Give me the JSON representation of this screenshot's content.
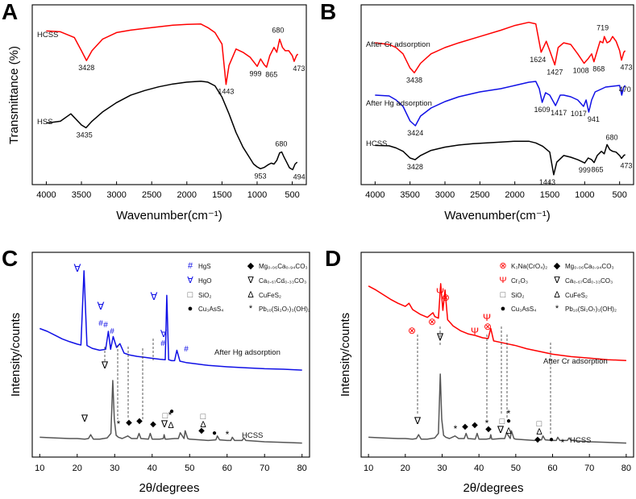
{
  "colors": {
    "red": "#ff0000",
    "blue": "#1010e6",
    "black": "#000000",
    "gray": "#555555"
  },
  "panels": {
    "A": {
      "letter": "A",
      "xlabel": "Wavenumber(cm⁻¹)",
      "ylabel": "Transmittance (%)"
    },
    "B": {
      "letter": "B",
      "xlabel": "Wavenumber(cm⁻¹)"
    },
    "C": {
      "letter": "C",
      "xlabel": "2θ/degrees",
      "ylabel": "Intensity/counts"
    },
    "D": {
      "letter": "D",
      "xlabel": "2θ/degrees",
      "ylabel": "Intensity/counts"
    }
  },
  "chart_data": [
    {
      "panel": "A",
      "type": "line",
      "xlabel": "Wavenumber(cm⁻¹)",
      "ylabel": "Transmittance (%)",
      "xlim": [
        4200,
        300
      ],
      "xticks": [
        4000,
        3500,
        3000,
        2500,
        2000,
        1500,
        1000,
        500
      ],
      "series": [
        {
          "name": "HCSS",
          "color": "#ff0000",
          "x": [
            4000,
            3800,
            3600,
            3500,
            3428,
            3350,
            3200,
            3000,
            2800,
            2600,
            2400,
            2200,
            2000,
            1800,
            1700,
            1600,
            1500,
            1443,
            1400,
            1300,
            1200,
            1100,
            999,
            950,
            900,
            865,
            820,
            760,
            720,
            680,
            640,
            600,
            550,
            500,
            473,
            440,
            420
          ],
          "y": [
            3.0,
            2.95,
            2.6,
            1.8,
            1.2,
            1.8,
            2.5,
            2.9,
            3.05,
            3.15,
            3.25,
            3.35,
            3.4,
            3.42,
            3.2,
            2.9,
            2.2,
            -0.25,
            0.9,
            1.9,
            1.7,
            1.4,
            0.85,
            1.3,
            0.95,
            0.8,
            1.5,
            2.0,
            1.7,
            2.5,
            2.0,
            1.8,
            1.8,
            1.5,
            1.15,
            1.5,
            1.6
          ],
          "annotations": [
            {
              "label": "3428",
              "x": 3428
            },
            {
              "label": "1443",
              "x": 1443
            },
            {
              "label": "999",
              "x": 999
            },
            {
              "label": "865",
              "x": 865
            },
            {
              "label": "680",
              "x": 680
            },
            {
              "label": "473",
              "x": 473
            }
          ]
        },
        {
          "name": "HSS",
          "color": "#000000",
          "x": [
            4000,
            3800,
            3650,
            3600,
            3500,
            3435,
            3350,
            3200,
            3000,
            2800,
            2600,
            2400,
            2200,
            2000,
            1800,
            1700,
            1600,
            1500,
            1400,
            1300,
            1200,
            1100,
            1050,
            1000,
            953,
            900,
            850,
            800,
            760,
            720,
            680,
            650,
            620,
            580,
            540,
            494,
            460,
            430
          ],
          "y": [
            -2.5,
            -2.4,
            -2.0,
            -2.2,
            -2.6,
            -2.75,
            -2.4,
            -1.9,
            -1.4,
            -1.0,
            -0.75,
            -0.55,
            -0.4,
            -0.3,
            -0.25,
            -0.3,
            -0.5,
            -1.1,
            -2.0,
            -3.0,
            -3.8,
            -4.4,
            -4.7,
            -4.85,
            -4.95,
            -4.88,
            -4.75,
            -4.65,
            -4.7,
            -4.5,
            -4.1,
            -4.05,
            -4.3,
            -4.6,
            -4.9,
            -5.0,
            -4.7,
            -4.6
          ],
          "annotations": [
            {
              "label": "3435",
              "x": 3435
            },
            {
              "label": "680",
              "x": 680
            },
            {
              "label": "953",
              "x": 953
            },
            {
              "label": "494",
              "x": 494
            }
          ]
        }
      ]
    },
    {
      "panel": "B",
      "type": "line",
      "xlabel": "Wavenumber(cm⁻¹)",
      "xlim": [
        4200,
        300
      ],
      "xticks": [
        4000,
        3500,
        3000,
        2500,
        2000,
        1500,
        1000,
        500
      ],
      "series": [
        {
          "name": "After Cr adsorption",
          "color": "#ff0000",
          "x": [
            4000,
            3800,
            3700,
            3600,
            3500,
            3438,
            3350,
            3200,
            3000,
            2800,
            2500,
            2200,
            2000,
            1800,
            1700,
            1624,
            1550,
            1500,
            1427,
            1380,
            1300,
            1200,
            1100,
            1008,
            950,
            900,
            868,
            820,
            780,
            740,
            719,
            680,
            640,
            600,
            550,
            500,
            473,
            440,
            420
          ],
          "y": [
            9.5,
            9.4,
            9.2,
            8.8,
            7.9,
            7.6,
            8.2,
            8.8,
            9.2,
            9.5,
            9.9,
            10.3,
            10.6,
            10.8,
            10.7,
            8.9,
            9.6,
            9.0,
            8.1,
            9.2,
            9.5,
            9.4,
            8.8,
            8.2,
            8.5,
            8.8,
            8.3,
            9.0,
            9.6,
            9.5,
            9.9,
            9.5,
            9.6,
            9.9,
            9.6,
            9.0,
            8.4,
            8.9,
            9.0
          ],
          "annotations": [
            {
              "label": "3438",
              "x": 3438
            },
            {
              "label": "1624",
              "x": 1624
            },
            {
              "label": "1427",
              "x": 1427
            },
            {
              "label": "1008",
              "x": 1008
            },
            {
              "label": "868",
              "x": 868
            },
            {
              "label": "719",
              "x": 719
            },
            {
              "label": "473",
              "x": 473
            }
          ]
        },
        {
          "name": "After Hg adsorption",
          "color": "#1010e6",
          "x": [
            4000,
            3800,
            3700,
            3600,
            3500,
            3424,
            3350,
            3200,
            3000,
            2800,
            2500,
            2200,
            2000,
            1800,
            1700,
            1650,
            1609,
            1560,
            1500,
            1417,
            1350,
            1300,
            1200,
            1100,
            1017,
            980,
            941,
            900,
            850,
            800,
            700,
            600,
            500,
            470,
            440,
            420
          ],
          "y": [
            5.6,
            5.55,
            5.3,
            4.9,
            4.0,
            3.7,
            4.3,
            4.8,
            5.2,
            5.5,
            5.8,
            6.0,
            6.2,
            6.4,
            6.45,
            6.0,
            5.15,
            5.75,
            5.6,
            4.95,
            5.6,
            5.6,
            5.5,
            5.3,
            4.9,
            5.3,
            4.55,
            5.3,
            5.8,
            5.9,
            6.1,
            6.15,
            6.2,
            5.6,
            6.1,
            6.2
          ],
          "annotations": [
            {
              "label": "3424",
              "x": 3424
            },
            {
              "label": "1609",
              "x": 1609
            },
            {
              "label": "1417",
              "x": 1417
            },
            {
              "label": "1017",
              "x": 1017
            },
            {
              "label": "941",
              "x": 941
            },
            {
              "label": "470",
              "x": 470
            }
          ]
        },
        {
          "name": "HCSS",
          "color": "#000000",
          "x": [
            4000,
            3800,
            3700,
            3600,
            3500,
            3428,
            3350,
            3200,
            3000,
            2800,
            2600,
            2400,
            2200,
            2000,
            1800,
            1700,
            1600,
            1500,
            1443,
            1400,
            1300,
            1200,
            1100,
            999,
            950,
            900,
            865,
            820,
            760,
            720,
            680,
            640,
            600,
            550,
            500,
            473,
            440,
            420
          ],
          "y": [
            2.0,
            1.95,
            1.7,
            1.3,
            0.5,
            0.3,
            0.8,
            1.4,
            1.8,
            2.05,
            2.2,
            2.3,
            2.4,
            2.5,
            2.5,
            2.3,
            1.9,
            1.2,
            -1.5,
            0.0,
            0.8,
            0.6,
            0.3,
            -0.1,
            0.5,
            0.3,
            -0.05,
            0.8,
            1.3,
            1.0,
            2.1,
            1.5,
            1.3,
            1.2,
            0.8,
            0.45,
            0.8,
            0.9
          ],
          "annotations": [
            {
              "label": "3428",
              "x": 3428
            },
            {
              "label": "1443",
              "x": 1443
            },
            {
              "label": "999",
              "x": 999
            },
            {
              "label": "865",
              "x": 865
            },
            {
              "label": "680",
              "x": 680
            },
            {
              "label": "473",
              "x": 473
            }
          ]
        }
      ]
    },
    {
      "panel": "C",
      "type": "line",
      "xlabel": "2θ/degrees",
      "ylabel": "Intensity/counts",
      "xlim": [
        8,
        82
      ],
      "xticks": [
        10,
        20,
        30,
        40,
        50,
        60,
        70,
        80
      ],
      "series": [
        {
          "name": "After Hg adsorption",
          "color": "#1010e6",
          "x": [
            10,
            12,
            14,
            16,
            18,
            20,
            21,
            21.8,
            22.6,
            24,
            26,
            27.6,
            28.3,
            28.9,
            29.6,
            30.5,
            31.4,
            32.5,
            34,
            36,
            38,
            40,
            42,
            43.5,
            43.9,
            44.4,
            45.2,
            46,
            46.6,
            47.4,
            49,
            52,
            55,
            60,
            65,
            70,
            75,
            80
          ],
          "y": [
            128,
            122,
            114,
            106,
            100,
            95,
            93,
            250,
            92,
            86,
            82,
            84,
            122,
            84,
            111,
            88,
            96,
            76,
            72,
            69,
            67,
            65,
            63,
            62,
            198,
            62,
            60,
            60,
            82,
            59,
            56,
            53,
            50,
            47,
            45,
            43,
            42,
            40
          ]
        },
        {
          "name": "HCSS",
          "color": "#555555",
          "x": [
            10,
            14,
            18,
            20,
            22,
            23,
            23.6,
            24.3,
            26,
            28,
            29,
            29.5,
            29.9,
            30.4,
            31,
            32,
            33.5,
            34.5,
            36,
            36.5,
            37,
            39,
            39.5,
            40,
            42,
            43,
            43.2,
            43.5,
            44,
            46,
            47,
            47.5,
            48.5,
            48.8,
            49.5,
            50,
            55,
            57,
            57.4,
            58,
            60,
            61,
            61.4,
            62,
            64,
            64.5,
            65,
            70,
            75,
            80
          ],
          "y": [
            12,
            11,
            10,
            10,
            9,
            10,
            16,
            9,
            9,
            11,
            18,
            100,
            40,
            15,
            12,
            10,
            14,
            10,
            10,
            18,
            10,
            9,
            18,
            9,
            9,
            10,
            16,
            9,
            9,
            10,
            10,
            19,
            10,
            22,
            10,
            9,
            7,
            8,
            14,
            8,
            7,
            7,
            12,
            7,
            7,
            11,
            7,
            5,
            4,
            3
          ]
        }
      ],
      "legend": [
        {
          "symbol": "#",
          "label": "HgS",
          "color": "#1010e6"
        },
        {
          "symbol": "∀",
          "label": "HgO",
          "color": "#1010e6"
        },
        {
          "symbol": "□",
          "label": "SiO₂",
          "color": "#555555"
        },
        {
          "symbol": "●",
          "label": "Cu₃AsS₄",
          "color": "#000000"
        },
        {
          "symbol": "◆",
          "label": "Mg₀.₀₆Ca₀.₉₄CO₃",
          "color": "#000000"
        },
        {
          "symbol": "∇",
          "label": "Ca₀.₆₇Cd₀.₃₃CO₃",
          "color": "#000000"
        },
        {
          "symbol": "Δ",
          "label": "CuFeS₂",
          "color": "#000000"
        },
        {
          "symbol": "*",
          "label": "Pb₁₀(Si₂O₇)₃(OH)₂",
          "color": "#000000"
        }
      ]
    },
    {
      "panel": "D",
      "type": "line",
      "xlabel": "2θ/degrees",
      "ylabel": "Intensity/counts",
      "xlim": [
        8,
        82
      ],
      "xticks": [
        10,
        20,
        30,
        40,
        50,
        60,
        70,
        80
      ],
      "series": [
        {
          "name": "After Cr adsorption",
          "color": "#ff0000",
          "x": [
            10,
            12,
            14,
            16,
            18,
            20,
            21,
            22,
            24,
            26,
            27.5,
            28,
            29,
            29.6,
            30.2,
            30.8,
            31.5,
            33,
            35,
            37,
            39,
            41,
            42.5,
            43.2,
            44,
            46,
            48,
            50,
            53,
            56,
            60,
            65,
            70,
            75,
            80
          ],
          "y": [
            143,
            138,
            132,
            126,
            121,
            117,
            121,
            113,
            107,
            103,
            109,
            104,
            102,
            146,
            112,
            138,
            100,
            92,
            86,
            82,
            80,
            77,
            76,
            89,
            73,
            71,
            69,
            67,
            63,
            60,
            56,
            53,
            51,
            49,
            48
          ]
        },
        {
          "name": "HCSS",
          "color": "#555555",
          "x": [
            10,
            14,
            18,
            20,
            22,
            23,
            23.6,
            24.3,
            26,
            28,
            29,
            29.5,
            29.9,
            30.4,
            31,
            32,
            33.5,
            34.5,
            36,
            36.5,
            37,
            39,
            39.5,
            40,
            42,
            43,
            43.2,
            43.5,
            44,
            46,
            47,
            47.5,
            48.5,
            48.8,
            49.5,
            50,
            55,
            57,
            57.4,
            58,
            60,
            61,
            61.4,
            62,
            64,
            64.5,
            65,
            70,
            75,
            80
          ],
          "y": [
            12,
            11,
            10,
            10,
            9,
            10,
            16,
            9,
            9,
            11,
            18,
            110,
            40,
            15,
            12,
            10,
            14,
            10,
            10,
            18,
            10,
            9,
            18,
            9,
            9,
            10,
            16,
            9,
            9,
            10,
            10,
            19,
            10,
            22,
            10,
            9,
            7,
            8,
            14,
            8,
            7,
            7,
            12,
            7,
            7,
            11,
            7,
            5,
            4,
            3
          ]
        }
      ],
      "legend": [
        {
          "symbol": "⊗",
          "label": "K₃Na(CrO₄)₂",
          "color": "#ff0000"
        },
        {
          "symbol": "Ψ",
          "label": "Cr₂O₃",
          "color": "#ff0000"
        },
        {
          "symbol": "□",
          "label": "SiO₂",
          "color": "#555555"
        },
        {
          "symbol": "●",
          "label": "Cu₃AsS₄",
          "color": "#000000"
        },
        {
          "symbol": "◆",
          "label": "Mg₀.₀₆Ca₀.₉₄CO₃",
          "color": "#000000"
        },
        {
          "symbol": "∇",
          "label": "Ca₀.₆₇Cd₀.₃₃CO₃",
          "color": "#000000"
        },
        {
          "symbol": "Δ",
          "label": "CuFeS₂",
          "color": "#000000"
        },
        {
          "symbol": "*",
          "label": "Pb₁₀(Si₂O₇)₃(OH)₂",
          "color": "#000000"
        }
      ]
    }
  ]
}
